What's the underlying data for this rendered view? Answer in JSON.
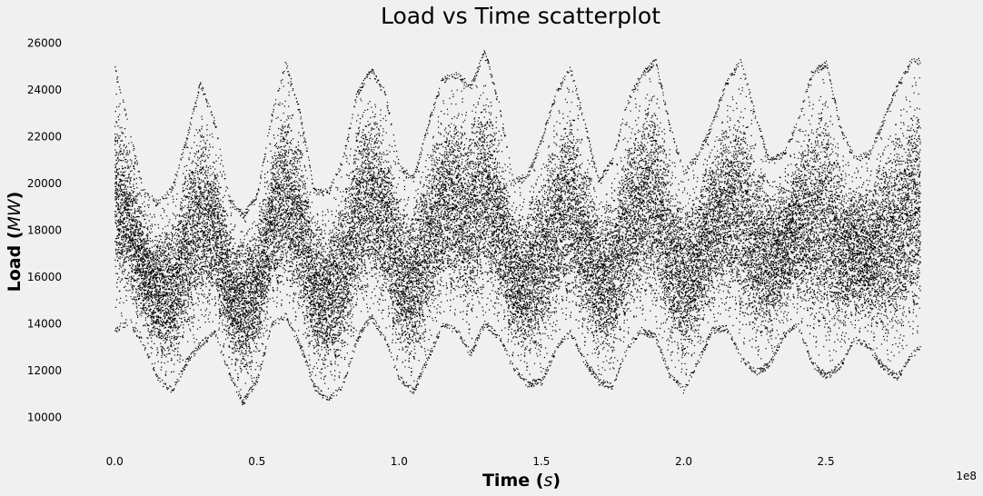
{
  "chart_data": {
    "type": "scatter",
    "title": "Load vs Time scatterplot",
    "xlabel_prefix": "Time (",
    "xlabel_unit": "s",
    "xlabel_suffix": ")",
    "ylabel_prefix": "Load (",
    "ylabel_unit": "MW",
    "ylabel_suffix": ")",
    "x_offset_label": "1e8",
    "xlim": [
      -0.09,
      2.95
    ],
    "ylim": [
      9200,
      26300
    ],
    "x_ticks": [
      0.0,
      0.5,
      1.0,
      1.5,
      2.0,
      2.5
    ],
    "x_tick_labels": [
      "0.0",
      "0.5",
      "1.0",
      "1.5",
      "2.0",
      "2.5"
    ],
    "y_ticks": [
      10000,
      12000,
      14000,
      16000,
      18000,
      20000,
      22000,
      24000,
      26000
    ],
    "y_tick_labels": [
      "10000",
      "12000",
      "14000",
      "16000",
      "18000",
      "20000",
      "22000",
      "24000",
      "26000"
    ],
    "grid": false,
    "marker_color": "#000000",
    "background_color": "#f0f0f0",
    "x_range_data": [
      0.0,
      2.83
    ],
    "series": [
      {
        "x": [
          0.0,
          0.05,
          0.1,
          0.15,
          0.2,
          0.25,
          0.3,
          0.35,
          0.4,
          0.45,
          0.5,
          0.55,
          0.6,
          0.65,
          0.7,
          0.75,
          0.8,
          0.85,
          0.9,
          0.95,
          1.0,
          1.05,
          1.1,
          1.15,
          1.2,
          1.25,
          1.3,
          1.35,
          1.4,
          1.45,
          1.5,
          1.55,
          1.6,
          1.65,
          1.7,
          1.75,
          1.8,
          1.85,
          1.9,
          1.95,
          2.0,
          2.05,
          2.1,
          2.15,
          2.2,
          2.25,
          2.3,
          2.35,
          2.4,
          2.45,
          2.5,
          2.55,
          2.6,
          2.65,
          2.7,
          2.75,
          2.8,
          2.83
        ],
        "y_min": [
          13600,
          14000,
          13000,
          11500,
          11000,
          12200,
          13000,
          13500,
          11800,
          10500,
          11500,
          13800,
          14200,
          13000,
          11200,
          10600,
          11200,
          13200,
          14200,
          13200,
          11500,
          11000,
          12400,
          13800,
          13600,
          12600,
          13900,
          13300,
          12000,
          11300,
          11400,
          12800,
          13500,
          12300,
          11400,
          11200,
          12800,
          13600,
          13300,
          11700,
          11000,
          12300,
          13600,
          13700,
          12400,
          11800,
          12100,
          13400,
          13800,
          12200,
          11600,
          12100,
          13200,
          12900,
          12000,
          11600,
          12500,
          12900
        ],
        "y_max": [
          25100,
          22500,
          19800,
          19300,
          19900,
          22000,
          24400,
          22800,
          19500,
          18800,
          19600,
          23000,
          25300,
          23200,
          19800,
          19800,
          21100,
          24000,
          25000,
          24000,
          20800,
          20400,
          22600,
          24600,
          24800,
          24300,
          25800,
          23500,
          20200,
          20500,
          22000,
          24000,
          25100,
          22800,
          20200,
          21200,
          23600,
          24800,
          25400,
          22600,
          20600,
          21400,
          22700,
          24500,
          25400,
          23100,
          21100,
          21400,
          22800,
          24900,
          25300,
          22500,
          21200,
          21400,
          22800,
          24300,
          25400,
          25400
        ]
      }
    ]
  }
}
